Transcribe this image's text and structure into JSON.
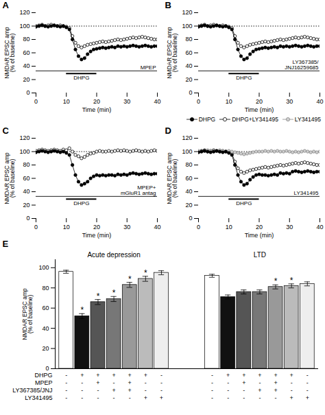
{
  "chart_data": [
    {
      "type": "line",
      "title": "A",
      "x": [
        0,
        1,
        2,
        3,
        4,
        5,
        6,
        7,
        8,
        9,
        10,
        11,
        12,
        13,
        14,
        15,
        16,
        17,
        18,
        19,
        20,
        21,
        22,
        23,
        24,
        25,
        26,
        27,
        28,
        29,
        30,
        31,
        32,
        33,
        34,
        35,
        36,
        37,
        38,
        39,
        40
      ],
      "series": [
        {
          "color": "#000000",
          "marker": "filled",
          "values": [
            99,
            100,
            101,
            100,
            99,
            100,
            101,
            100,
            99,
            100,
            98,
            95,
            80,
            65,
            55,
            50,
            52,
            58,
            62,
            65,
            66,
            67,
            68,
            67,
            68,
            69,
            68,
            70,
            69,
            70,
            69,
            70,
            71,
            70,
            69,
            70,
            71,
            70,
            69,
            70,
            70
          ]
        },
        {
          "color": "#000000",
          "marker": "open",
          "values": [
            100,
            101,
            102,
            100,
            101,
            102,
            101,
            100,
            101,
            100,
            99,
            97,
            85,
            75,
            70,
            68,
            70,
            72,
            73,
            74,
            75,
            76,
            77,
            76,
            77,
            78,
            79,
            80,
            79,
            80,
            81,
            82,
            83,
            82,
            83,
            84,
            83,
            82,
            81,
            80,
            80
          ]
        }
      ],
      "reference_lines": [
        {
          "y": 100,
          "line_style": "dotted"
        },
        {
          "y": 33,
          "line_style": "solid",
          "label": "MPEP"
        }
      ],
      "spans": [
        {
          "x": [
            10,
            20
          ],
          "y": 29,
          "label": "DHPG"
        }
      ],
      "xlabel": "Time (min)",
      "ylabel": "NMDAR EPSC amp\n(% of baseline)",
      "xlim": [
        0,
        40
      ],
      "ylim": [
        0,
        120
      ],
      "xticks": [
        0,
        10,
        20,
        30,
        40
      ],
      "yticks": [
        0,
        20,
        40,
        60,
        80,
        100,
        120
      ],
      "grid": false
    },
    {
      "type": "line",
      "title": "B",
      "x": [
        0,
        1,
        2,
        3,
        4,
        5,
        6,
        7,
        8,
        9,
        10,
        11,
        12,
        13,
        14,
        15,
        16,
        17,
        18,
        19,
        20,
        21,
        22,
        23,
        24,
        25,
        26,
        27,
        28,
        29,
        30,
        31,
        32,
        33,
        34,
        35,
        36,
        37,
        38,
        39,
        40
      ],
      "series": [
        {
          "color": "#000000",
          "marker": "filled",
          "values": [
            99,
            100,
            101,
            100,
            99,
            100,
            101,
            100,
            99,
            100,
            98,
            95,
            80,
            65,
            55,
            50,
            52,
            58,
            62,
            65,
            66,
            67,
            68,
            67,
            68,
            69,
            68,
            70,
            69,
            70,
            69,
            70,
            71,
            70,
            69,
            70,
            71,
            70,
            69,
            70,
            70
          ]
        },
        {
          "color": "#000000",
          "marker": "open",
          "values": [
            100,
            101,
            102,
            100,
            101,
            102,
            101,
            100,
            101,
            100,
            99,
            97,
            85,
            75,
            70,
            68,
            70,
            72,
            73,
            74,
            75,
            76,
            77,
            76,
            77,
            78,
            79,
            80,
            79,
            80,
            81,
            82,
            83,
            82,
            83,
            84,
            83,
            82,
            81,
            80,
            80
          ]
        }
      ],
      "reference_lines": [
        {
          "y": 100,
          "line_style": "dotted"
        },
        {
          "y": 33,
          "line_style": "solid",
          "label": "LY367385/\nJNJ16259685"
        }
      ],
      "spans": [
        {
          "x": [
            10,
            20
          ],
          "y": 29,
          "label": "DHPG"
        }
      ],
      "xlabel": "Time (min)",
      "ylabel": "NMDAR EPSC amp\n(% of baseline)",
      "xlim": [
        0,
        40
      ],
      "ylim": [
        0,
        120
      ],
      "xticks": [
        0,
        10,
        20,
        30,
        40
      ],
      "yticks": [
        0,
        20,
        40,
        60,
        80,
        100,
        120
      ],
      "grid": false
    },
    {
      "type": "line",
      "title": "C",
      "x": [
        0,
        1,
        2,
        3,
        4,
        5,
        6,
        7,
        8,
        9,
        10,
        11,
        12,
        13,
        14,
        15,
        16,
        17,
        18,
        19,
        20,
        21,
        22,
        23,
        24,
        25,
        26,
        27,
        28,
        29,
        30,
        31,
        32,
        33,
        34,
        35,
        36,
        37,
        38,
        39,
        40
      ],
      "series": [
        {
          "color": "#000000",
          "marker": "filled",
          "values": [
            99,
            100,
            101,
            100,
            99,
            100,
            101,
            100,
            99,
            100,
            98,
            95,
            80,
            65,
            55,
            50,
            52,
            55,
            60,
            63,
            65,
            64,
            65,
            64,
            65,
            65,
            64,
            66,
            65,
            66,
            65,
            67,
            68,
            67,
            66,
            67,
            68,
            67,
            66,
            67,
            67
          ]
        },
        {
          "color": "#000000",
          "marker": "open",
          "values": [
            101,
            102,
            103,
            102,
            101,
            102,
            103,
            102,
            101,
            103,
            102,
            105,
            100,
            95,
            93,
            90,
            92,
            95,
            97,
            98,
            100,
            101,
            100,
            100,
            101,
            100,
            101,
            102,
            101,
            102,
            101,
            100,
            101,
            102,
            101,
            100,
            101,
            100,
            101,
            102,
            101
          ]
        }
      ],
      "reference_lines": [
        {
          "y": 100,
          "line_style": "dotted"
        },
        {
          "y": 33,
          "line_style": "solid",
          "label": "MPEP+\nmGluR1 antag"
        }
      ],
      "spans": [
        {
          "x": [
            10,
            20
          ],
          "y": 29,
          "label": "DHPG"
        }
      ],
      "xlabel": "Time (min)",
      "ylabel": "NMDAR EPSC amp\n(% of baseline)",
      "xlim": [
        0,
        40
      ],
      "ylim": [
        0,
        120
      ],
      "xticks": [
        0,
        10,
        20,
        30,
        40
      ],
      "yticks": [
        0,
        20,
        40,
        60,
        80,
        100,
        120
      ],
      "grid": false
    },
    {
      "type": "line",
      "title": "D",
      "x": [
        0,
        1,
        2,
        3,
        4,
        5,
        6,
        7,
        8,
        9,
        10,
        11,
        12,
        13,
        14,
        15,
        16,
        17,
        18,
        19,
        20,
        21,
        22,
        23,
        24,
        25,
        26,
        27,
        28,
        29,
        30,
        31,
        32,
        33,
        34,
        35,
        36,
        37,
        38,
        39,
        40
      ],
      "series": [
        {
          "name": "DHPG",
          "color": "#000000",
          "marker": "filled",
          "values": [
            99,
            100,
            101,
            100,
            99,
            100,
            101,
            100,
            99,
            100,
            98,
            95,
            80,
            65,
            55,
            50,
            52,
            58,
            62,
            65,
            66,
            65,
            65,
            64,
            65,
            66,
            65,
            68,
            67,
            68,
            67,
            70,
            71,
            70,
            69,
            70,
            71,
            70,
            69,
            70,
            70
          ]
        },
        {
          "name": "DHPG+LY341495",
          "color": "#000000",
          "marker": "open",
          "values": [
            100,
            101,
            102,
            100,
            101,
            102,
            101,
            100,
            101,
            100,
            99,
            97,
            85,
            75,
            70,
            68,
            70,
            72,
            73,
            74,
            75,
            76,
            77,
            76,
            77,
            78,
            79,
            80,
            79,
            80,
            81,
            82,
            83,
            82,
            83,
            84,
            83,
            82,
            81,
            80,
            80
          ]
        },
        {
          "name": "LY341495",
          "color": "#888888",
          "marker": "shaded",
          "values": [
            101,
            100,
            101,
            102,
            101,
            100,
            101,
            102,
            101,
            100,
            101,
            100,
            99,
            98,
            97,
            96,
            97,
            98,
            99,
            100,
            100,
            100,
            101,
            100,
            101,
            100,
            101,
            100,
            100,
            101,
            100,
            99,
            100,
            99,
            100,
            101,
            100,
            99,
            100,
            99,
            100
          ]
        }
      ],
      "reference_lines": [
        {
          "y": 100,
          "line_style": "dotted"
        },
        {
          "y": 33,
          "line_style": "solid",
          "label": "LY341495"
        }
      ],
      "spans": [
        {
          "x": [
            10,
            20
          ],
          "y": 29,
          "label": "DHPG"
        }
      ],
      "legend": "upper right",
      "xlabel": "Time (min)",
      "ylabel": "NMDAR EPSC amp\n(% of baseline)",
      "xlim": [
        0,
        40
      ],
      "ylim": [
        0,
        120
      ],
      "xticks": [
        0,
        10,
        20,
        30,
        40
      ],
      "yticks": [
        0,
        20,
        40,
        60,
        80,
        100,
        120
      ],
      "grid": false
    },
    {
      "type": "bar",
      "title": "E",
      "ylabel": "NMDAR EPSC amp\n(% of baseline)",
      "ylim": [
        0,
        108
      ],
      "yticks": [
        0,
        20,
        40,
        60,
        80,
        100
      ],
      "tick_labels": "y",
      "grid": false,
      "row_labels": [
        "DHPG",
        "MPEP",
        "LY367385/JNJ",
        "LY341495"
      ],
      "groups": [
        {
          "name": "Acute depression",
          "values": [
            96,
            52,
            66,
            69,
            83,
            89,
            95
          ],
          "errors": [
            1.5,
            2.5,
            2.5,
            2.5,
            2.5,
            2.5,
            2.0
          ],
          "colors": [
            "#ffffff",
            "#111111",
            "#555555",
            "#777777",
            "#999999",
            "#bbbbbb",
            "#eeeeee"
          ],
          "stars": [
            null,
            "*",
            "*",
            "*",
            "*",
            "*",
            null
          ],
          "rows": [
            [
              "-",
              "+",
              "+",
              "+",
              "+",
              "+",
              "-"
            ],
            [
              "-",
              "-",
              "+",
              "-",
              "+",
              "-",
              "-"
            ],
            [
              "-",
              "-",
              "-",
              "+",
              "+",
              "-",
              "-"
            ],
            [
              "-",
              "-",
              "-",
              "-",
              "-",
              "+",
              "+"
            ]
          ]
        },
        {
          "name": "LTD",
          "values": [
            92,
            71,
            76,
            76,
            81,
            82,
            84
          ],
          "errors": [
            1.5,
            2.0,
            2.0,
            2.0,
            2.0,
            2.0,
            2.0
          ],
          "colors": [
            "#ffffff",
            "#111111",
            "#555555",
            "#777777",
            "#999999",
            "#bbbbbb",
            "#eeeeee"
          ],
          "stars": [
            null,
            null,
            null,
            null,
            "*",
            "*",
            null
          ],
          "rows": [
            [
              "-",
              "+",
              "+",
              "+",
              "+",
              "+",
              "-"
            ],
            [
              "-",
              "-",
              "+",
              "-",
              "+",
              "-",
              "-"
            ],
            [
              "-",
              "-",
              "-",
              "+",
              "+",
              "-",
              "-"
            ],
            [
              "-",
              "-",
              "-",
              "-",
              "-",
              "+",
              "+"
            ]
          ]
        }
      ]
    }
  ]
}
